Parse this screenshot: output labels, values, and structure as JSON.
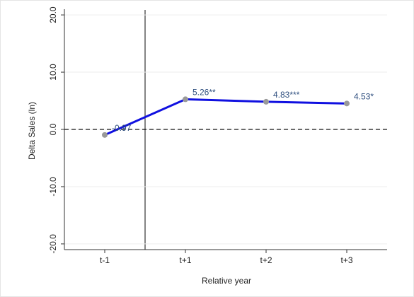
{
  "chart_data": {
    "type": "line",
    "categories": [
      "t-1",
      "t+1",
      "t+2",
      "t+3"
    ],
    "series": [
      {
        "color": "#1010e0",
        "marker_color": "#999999",
        "values": [
          -0.97,
          5.26,
          4.83,
          4.53
        ],
        "value_labels": [
          "-0.97",
          "5.26**",
          "4.83***",
          "4.53*"
        ]
      }
    ],
    "x_label": "Relative year",
    "y_label": "Delta Sales (ln)",
    "ylim": [
      -21,
      21
    ],
    "yticks": [
      {
        "value": -20,
        "label": "-20.0"
      },
      {
        "value": -10,
        "label": "-10.0"
      },
      {
        "value": 0,
        "label": "0.0"
      },
      {
        "value": 10,
        "label": "10.0"
      },
      {
        "value": 20,
        "label": "20.0"
      }
    ],
    "reference_line": 0,
    "grid": true
  }
}
